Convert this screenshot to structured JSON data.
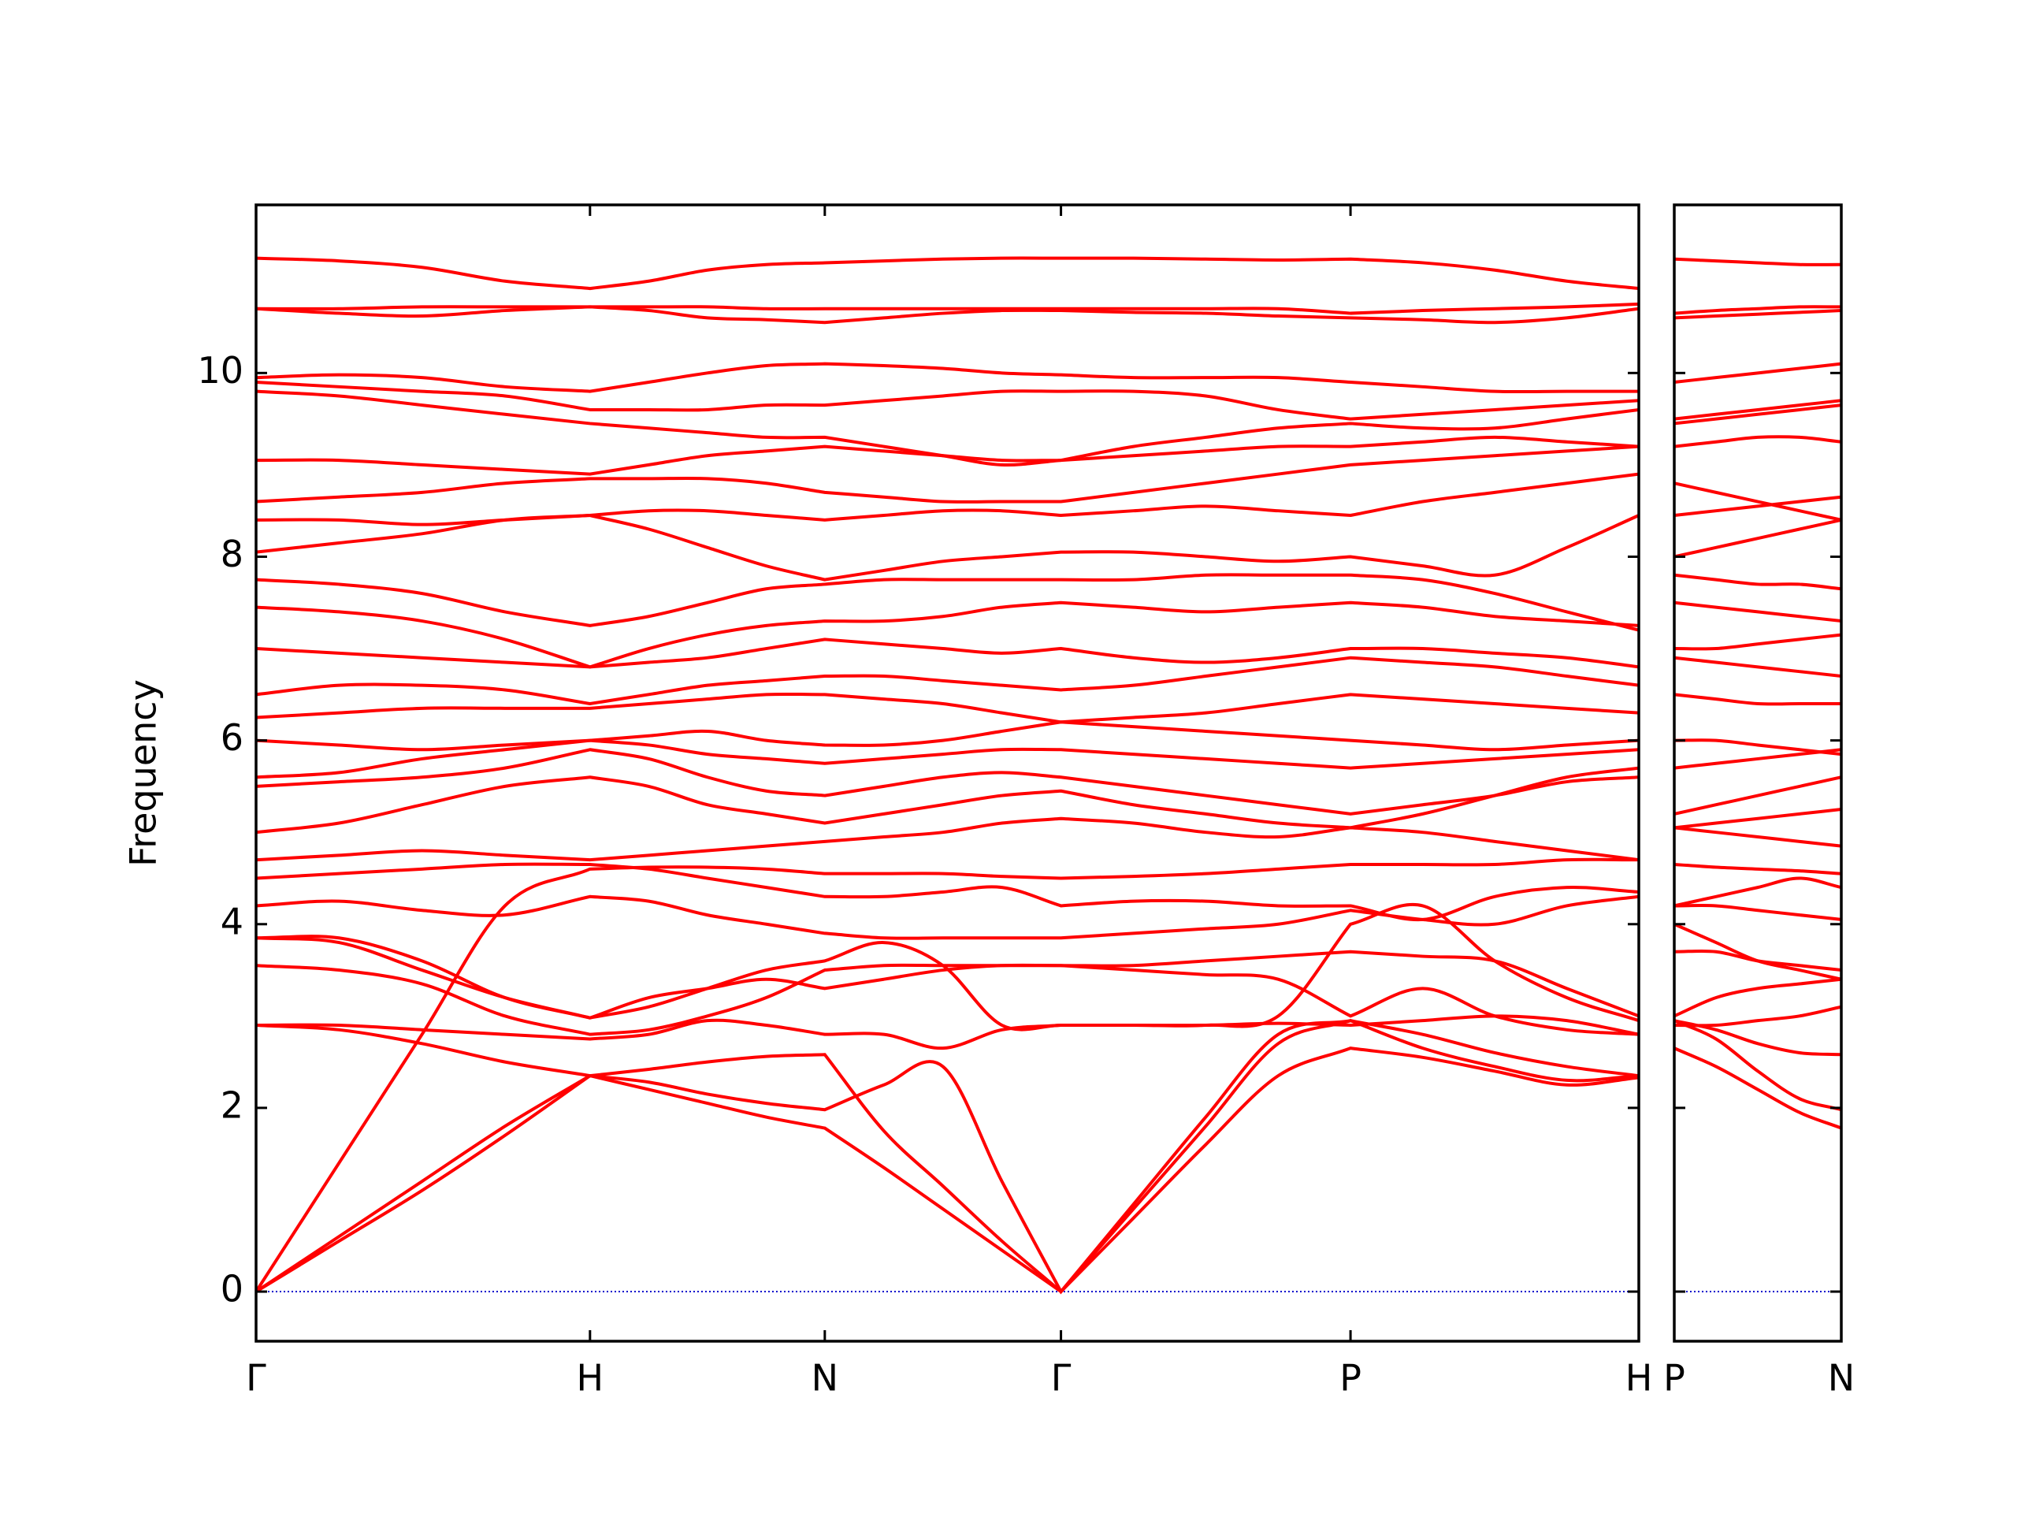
{
  "chart_data": [
    {
      "type": "line",
      "ylabel": "Frequency",
      "color": "#ff0000",
      "grid": false,
      "show_ytick_labels": true,
      "hlines": [
        0
      ],
      "hline_color": "#0000cc",
      "xlim": [
        0,
        1
      ],
      "ylim": [
        -0.54,
        11.83
      ],
      "xticks": [
        {
          "value": 0,
          "label": "Γ"
        },
        {
          "value": 0.2415,
          "label": "H"
        },
        {
          "value": 0.4113,
          "label": "N"
        },
        {
          "value": 0.5821,
          "label": "Γ"
        },
        {
          "value": 0.7915,
          "label": "P"
        },
        {
          "value": 1,
          "label": "H"
        }
      ],
      "yticks": [
        0,
        2,
        4,
        6,
        8,
        10
      ],
      "x": [
        0,
        0.06,
        0.12,
        0.18,
        0.2415,
        0.284,
        0.3264,
        0.3689,
        0.4113,
        0.454,
        0.4967,
        0.5394,
        0.5821,
        0.6345,
        0.6868,
        0.7392,
        0.7915,
        0.8437,
        0.8958,
        0.9479,
        1
      ],
      "series": [
        {
          "values": [
            0,
            0.6,
            1.2,
            1.8,
            2.35,
            2.2,
            2.05,
            1.9,
            1.78,
            1.35,
            0.9,
            0.45,
            0,
            0.8,
            1.6,
            2.35,
            2.65,
            2.55,
            2.4,
            2.25,
            2.33
          ]
        },
        {
          "values": [
            0,
            0.55,
            1.1,
            1.7,
            2.35,
            2.28,
            2.15,
            2.05,
            1.98,
            2.25,
            2.45,
            1.2,
            0,
            0.9,
            1.8,
            2.7,
            2.95,
            2.65,
            2.45,
            2.3,
            2.35
          ]
        },
        {
          "values": [
            2.9,
            2.85,
            2.7,
            2.5,
            2.35,
            2.42,
            2.5,
            2.56,
            2.58,
            1.75,
            1.15,
            0.55,
            0,
            0.95,
            1.9,
            2.8,
            2.95,
            2.8,
            2.6,
            2.45,
            2.35
          ]
        },
        {
          "values": [
            0,
            1.4,
            2.8,
            4.2,
            4.6,
            4.62,
            4.62,
            4.6,
            4.55,
            4.55,
            4.55,
            4.52,
            4.5,
            4.52,
            4.55,
            4.6,
            4.65,
            4.65,
            4.65,
            4.7,
            4.7
          ]
        },
        {
          "values": [
            2.9,
            2.9,
            2.85,
            2.8,
            2.75,
            2.8,
            2.95,
            2.9,
            2.8,
            2.8,
            2.65,
            2.85,
            2.9,
            2.9,
            2.9,
            2.92,
            2.9,
            2.95,
            3.0,
            2.95,
            2.8
          ]
        },
        {
          "values": [
            3.85,
            3.8,
            3.5,
            3.2,
            2.98,
            3.1,
            3.3,
            3.5,
            3.6,
            3.8,
            3.55,
            2.9,
            2.9,
            2.9,
            2.9,
            3.0,
            4.0,
            4.2,
            3.6,
            3.2,
            2.95
          ]
        },
        {
          "values": [
            3.55,
            3.5,
            3.35,
            3.0,
            2.8,
            2.85,
            3.0,
            3.2,
            3.5,
            3.55,
            3.55,
            3.55,
            3.55,
            3.5,
            3.45,
            3.4,
            3.0,
            3.3,
            3.0,
            2.85,
            2.8
          ]
        },
        {
          "values": [
            3.85,
            3.85,
            3.6,
            3.2,
            2.98,
            3.2,
            3.3,
            3.4,
            3.3,
            3.4,
            3.5,
            3.55,
            3.55,
            3.55,
            3.6,
            3.65,
            3.7,
            3.65,
            3.6,
            3.3,
            3.0
          ]
        },
        {
          "values": [
            4.2,
            4.25,
            4.15,
            4.1,
            4.3,
            4.25,
            4.1,
            4.0,
            3.9,
            3.85,
            3.85,
            3.85,
            3.85,
            3.9,
            3.95,
            4.0,
            4.15,
            4.05,
            4.0,
            4.2,
            4.3
          ]
        },
        {
          "values": [
            4.5,
            4.55,
            4.6,
            4.65,
            4.65,
            4.6,
            4.5,
            4.4,
            4.3,
            4.3,
            4.35,
            4.4,
            4.2,
            4.25,
            4.25,
            4.2,
            4.2,
            4.05,
            4.3,
            4.4,
            4.35
          ]
        },
        {
          "values": [
            4.7,
            4.75,
            4.8,
            4.75,
            4.7,
            4.75,
            4.8,
            4.85,
            4.9,
            4.95,
            5.0,
            5.1,
            5.15,
            5.1,
            5.0,
            4.95,
            5.05,
            5.0,
            4.9,
            4.8,
            4.7
          ]
        },
        {
          "values": [
            5.0,
            5.1,
            5.3,
            5.5,
            5.6,
            5.5,
            5.3,
            5.2,
            5.1,
            5.2,
            5.3,
            5.4,
            5.45,
            5.3,
            5.2,
            5.1,
            5.05,
            5.2,
            5.4,
            5.6,
            5.7
          ]
        },
        {
          "values": [
            5.5,
            5.55,
            5.6,
            5.7,
            5.9,
            5.8,
            5.6,
            5.45,
            5.4,
            5.5,
            5.6,
            5.65,
            5.6,
            5.5,
            5.4,
            5.3,
            5.2,
            5.3,
            5.4,
            5.55,
            5.6
          ]
        },
        {
          "values": [
            5.6,
            5.65,
            5.8,
            5.9,
            6.0,
            5.95,
            5.85,
            5.8,
            5.75,
            5.8,
            5.85,
            5.9,
            5.9,
            5.85,
            5.8,
            5.75,
            5.7,
            5.75,
            5.8,
            5.85,
            5.9
          ]
        },
        {
          "values": [
            6.0,
            5.95,
            5.9,
            5.95,
            6.0,
            6.05,
            6.1,
            6.0,
            5.95,
            5.95,
            6.0,
            6.1,
            6.2,
            6.15,
            6.1,
            6.05,
            6.0,
            5.95,
            5.9,
            5.95,
            6.0
          ]
        },
        {
          "values": [
            6.25,
            6.3,
            6.35,
            6.35,
            6.35,
            6.4,
            6.45,
            6.5,
            6.5,
            6.45,
            6.4,
            6.3,
            6.2,
            6.25,
            6.3,
            6.4,
            6.5,
            6.45,
            6.4,
            6.35,
            6.3
          ]
        },
        {
          "values": [
            6.5,
            6.6,
            6.6,
            6.55,
            6.4,
            6.5,
            6.6,
            6.65,
            6.7,
            6.7,
            6.65,
            6.6,
            6.55,
            6.6,
            6.7,
            6.8,
            6.9,
            6.85,
            6.8,
            6.7,
            6.6
          ]
        },
        {
          "values": [
            7.0,
            6.95,
            6.9,
            6.85,
            6.8,
            6.85,
            6.9,
            7.0,
            7.1,
            7.05,
            7.0,
            6.95,
            7.0,
            6.9,
            6.85,
            6.9,
            7.0,
            7.0,
            6.95,
            6.9,
            6.8
          ]
        },
        {
          "values": [
            7.45,
            7.4,
            7.3,
            7.1,
            6.8,
            7.0,
            7.15,
            7.25,
            7.3,
            7.3,
            7.35,
            7.45,
            7.5,
            7.45,
            7.4,
            7.45,
            7.5,
            7.45,
            7.35,
            7.3,
            7.25
          ]
        },
        {
          "values": [
            7.75,
            7.7,
            7.6,
            7.4,
            7.25,
            7.35,
            7.5,
            7.65,
            7.7,
            7.75,
            7.75,
            7.75,
            7.75,
            7.75,
            7.8,
            7.8,
            7.8,
            7.75,
            7.6,
            7.4,
            7.2
          ]
        },
        {
          "values": [
            8.05,
            8.15,
            8.25,
            8.4,
            8.45,
            8.3,
            8.1,
            7.9,
            7.75,
            7.85,
            7.95,
            8.0,
            8.05,
            8.05,
            8.0,
            7.95,
            8.0,
            7.9,
            7.8,
            8.1,
            8.45
          ]
        },
        {
          "values": [
            8.4,
            8.4,
            8.35,
            8.4,
            8.45,
            8.5,
            8.5,
            8.45,
            8.4,
            8.45,
            8.5,
            8.5,
            8.45,
            8.5,
            8.55,
            8.5,
            8.45,
            8.6,
            8.7,
            8.8,
            8.9
          ]
        },
        {
          "values": [
            8.6,
            8.65,
            8.7,
            8.8,
            8.85,
            8.85,
            8.85,
            8.8,
            8.7,
            8.65,
            8.6,
            8.6,
            8.6,
            8.7,
            8.8,
            8.9,
            9.0,
            9.05,
            9.1,
            9.15,
            9.2
          ]
        },
        {
          "values": [
            9.05,
            9.05,
            9.0,
            8.95,
            8.9,
            9.0,
            9.1,
            9.15,
            9.2,
            9.15,
            9.1,
            9.05,
            9.05,
            9.1,
            9.15,
            9.2,
            9.2,
            9.25,
            9.3,
            9.25,
            9.2
          ]
        },
        {
          "values": [
            9.8,
            9.75,
            9.65,
            9.55,
            9.45,
            9.4,
            9.35,
            9.3,
            9.3,
            9.2,
            9.1,
            9.0,
            9.05,
            9.2,
            9.3,
            9.4,
            9.45,
            9.4,
            9.4,
            9.5,
            9.6
          ]
        },
        {
          "values": [
            9.9,
            9.85,
            9.8,
            9.75,
            9.6,
            9.6,
            9.6,
            9.65,
            9.65,
            9.7,
            9.75,
            9.8,
            9.8,
            9.8,
            9.75,
            9.6,
            9.5,
            9.55,
            9.6,
            9.65,
            9.7
          ]
        },
        {
          "values": [
            9.95,
            9.98,
            9.95,
            9.85,
            9.8,
            9.9,
            10.0,
            10.08,
            10.1,
            10.08,
            10.05,
            10.0,
            9.98,
            9.95,
            9.95,
            9.95,
            9.9,
            9.85,
            9.8,
            9.8,
            9.8
          ]
        },
        {
          "values": [
            10.7,
            10.65,
            10.62,
            10.68,
            10.72,
            10.68,
            10.6,
            10.58,
            10.55,
            10.6,
            10.65,
            10.68,
            10.68,
            10.66,
            10.65,
            10.62,
            10.6,
            10.58,
            10.55,
            10.6,
            10.7
          ]
        },
        {
          "values": [
            10.7,
            10.7,
            10.72,
            10.72,
            10.72,
            10.72,
            10.72,
            10.7,
            10.7,
            10.7,
            10.7,
            10.7,
            10.7,
            10.7,
            10.7,
            10.7,
            10.65,
            10.68,
            10.7,
            10.72,
            10.75
          ]
        },
        {
          "values": [
            11.25,
            11.22,
            11.15,
            11.0,
            10.92,
            11.0,
            11.12,
            11.18,
            11.2,
            11.22,
            11.24,
            11.25,
            11.25,
            11.25,
            11.24,
            11.23,
            11.24,
            11.2,
            11.12,
            11.0,
            10.92
          ]
        }
      ]
    },
    {
      "type": "line",
      "color": "#ff0000",
      "grid": false,
      "show_ytick_labels": false,
      "hlines": [
        0
      ],
      "hline_color": "#0000cc",
      "xlim": [
        0,
        0.1208
      ],
      "ylim": [
        -0.54,
        11.83
      ],
      "xticks": [
        {
          "value": 0,
          "label": "P"
        },
        {
          "value": 0.1208,
          "label": "N"
        }
      ],
      "yticks": [
        0,
        2,
        4,
        6,
        8,
        10
      ],
      "x": [
        0,
        0.0302,
        0.0604,
        0.0906,
        0.1208
      ],
      "series": [
        {
          "values": [
            2.65,
            2.45,
            2.2,
            1.95,
            1.78
          ]
        },
        {
          "values": [
            2.95,
            2.75,
            2.4,
            2.1,
            1.98
          ]
        },
        {
          "values": [
            2.95,
            2.85,
            2.7,
            2.6,
            2.58
          ]
        },
        {
          "values": [
            4.65,
            4.62,
            4.6,
            4.58,
            4.55
          ]
        },
        {
          "values": [
            2.9,
            2.9,
            2.95,
            3.0,
            3.1
          ]
        },
        {
          "values": [
            4.0,
            3.8,
            3.6,
            3.5,
            3.4
          ]
        },
        {
          "values": [
            3.0,
            3.2,
            3.3,
            3.35,
            3.4
          ]
        },
        {
          "values": [
            3.7,
            3.7,
            3.6,
            3.55,
            3.5
          ]
        },
        {
          "values": [
            4.2,
            4.2,
            4.15,
            4.1,
            4.05
          ]
        },
        {
          "values": [
            4.2,
            4.3,
            4.4,
            4.5,
            4.4
          ]
        },
        {
          "values": [
            5.05,
            5.0,
            4.95,
            4.9,
            4.85
          ]
        },
        {
          "values": [
            5.05,
            5.1,
            5.15,
            5.2,
            5.25
          ]
        },
        {
          "values": [
            5.2,
            5.3,
            5.4,
            5.5,
            5.6
          ]
        },
        {
          "values": [
            5.7,
            5.75,
            5.8,
            5.85,
            5.9
          ]
        },
        {
          "values": [
            6.0,
            6.0,
            5.95,
            5.9,
            5.85
          ]
        },
        {
          "values": [
            6.5,
            6.45,
            6.4,
            6.4,
            6.4
          ]
        },
        {
          "values": [
            6.9,
            6.85,
            6.8,
            6.75,
            6.7
          ]
        },
        {
          "values": [
            7.0,
            7.0,
            7.05,
            7.1,
            7.15
          ]
        },
        {
          "values": [
            7.5,
            7.45,
            7.4,
            7.35,
            7.3
          ]
        },
        {
          "values": [
            7.8,
            7.75,
            7.7,
            7.7,
            7.65
          ]
        },
        {
          "values": [
            8.0,
            8.1,
            8.2,
            8.3,
            8.4
          ]
        },
        {
          "values": [
            8.45,
            8.5,
            8.55,
            8.6,
            8.65
          ]
        },
        {
          "values": [
            8.8,
            8.7,
            8.6,
            8.5,
            8.4
          ]
        },
        {
          "values": [
            9.2,
            9.25,
            9.3,
            9.3,
            9.25
          ]
        },
        {
          "values": [
            9.45,
            9.5,
            9.55,
            9.6,
            9.65
          ]
        },
        {
          "values": [
            9.5,
            9.55,
            9.6,
            9.65,
            9.7
          ]
        },
        {
          "values": [
            9.9,
            9.95,
            10.0,
            10.05,
            10.1
          ]
        },
        {
          "values": [
            10.6,
            10.62,
            10.64,
            10.66,
            10.68
          ]
        },
        {
          "values": [
            10.65,
            10.68,
            10.7,
            10.72,
            10.72
          ]
        },
        {
          "values": [
            11.24,
            11.22,
            11.2,
            11.18,
            11.18
          ]
        }
      ]
    }
  ]
}
